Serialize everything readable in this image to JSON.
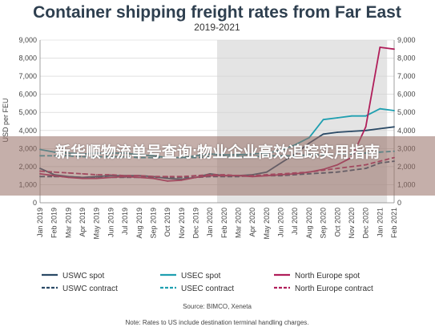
{
  "overlay_text": "新华顺物流单号查询:物业企业高效追踪实用指南",
  "chart_data": {
    "type": "line",
    "title": "Container shipping freight rates from Far East",
    "subtitle": "2019-2021",
    "ylabel": "USD per FEU",
    "ylim": [
      0,
      9000
    ],
    "yticks": [
      "0",
      "1,000",
      "2,000",
      "3,000",
      "4,000",
      "5,000",
      "6,000",
      "7,000",
      "8,000",
      "9,000"
    ],
    "x": [
      "Jan 2019",
      "Feb 2019",
      "Mar 2019",
      "Apr 2019",
      "May 2019",
      "Jun 2019",
      "Jul 2019",
      "Aug 2019",
      "Sep 2019",
      "Oct 2019",
      "Nov 2019",
      "Dec 2019",
      "Jan 2020",
      "Feb 2020",
      "Mar 2020",
      "Apr 2020",
      "May 2020",
      "Jun 2020",
      "Jul 2020",
      "Aug 2020",
      "Sep 2020",
      "Oct 2020",
      "Nov 2020",
      "Dec 2020",
      "Jan 2021",
      "Feb 2021"
    ],
    "shaded_range": [
      "Feb 2020",
      "Jan 2021"
    ],
    "series": [
      {
        "name": "USWC spot",
        "color": "#2b4a66",
        "dash": "none",
        "values": [
          1900,
          1550,
          1450,
          1400,
          1450,
          1500,
          1500,
          1500,
          1450,
          1350,
          1300,
          1400,
          1600,
          1500,
          1500,
          1550,
          1700,
          2200,
          2700,
          3300,
          3800,
          3900,
          3950,
          4000,
          4100,
          4200
        ]
      },
      {
        "name": "USWC contract",
        "color": "#2b4a66",
        "dash": "6,3",
        "values": [
          1450,
          1450,
          1450,
          1400,
          1400,
          1400,
          1400,
          1400,
          1400,
          1400,
          1400,
          1400,
          1450,
          1450,
          1450,
          1500,
          1500,
          1500,
          1550,
          1600,
          1650,
          1700,
          1800,
          1900,
          2200,
          2300
        ]
      },
      {
        "name": "USEC spot",
        "color": "#1f9fb0",
        "dash": "none",
        "values": [
          2950,
          2800,
          2750,
          2700,
          2750,
          2750,
          2750,
          2650,
          2600,
          2500,
          2500,
          2600,
          2700,
          2650,
          2650,
          2700,
          2750,
          2900,
          3200,
          3600,
          4600,
          4700,
          4800,
          4800,
          5200,
          5100
        ]
      },
      {
        "name": "USEC contract",
        "color": "#1f9fb0",
        "dash": "6,3",
        "values": [
          2600,
          2600,
          2600,
          2550,
          2550,
          2550,
          2550,
          2500,
          2500,
          2500,
          2500,
          2500,
          2550,
          2550,
          2550,
          2550,
          2600,
          2600,
          2600,
          2650,
          2650,
          2700,
          2700,
          2750,
          2800,
          2850
        ]
      },
      {
        "name": "North Europe spot",
        "color": "#b01e5a",
        "dash": "none",
        "values": [
          1600,
          1500,
          1400,
          1350,
          1350,
          1400,
          1450,
          1400,
          1350,
          1200,
          1250,
          1400,
          1500,
          1500,
          1500,
          1450,
          1500,
          1550,
          1600,
          1700,
          1850,
          2100,
          2500,
          4200,
          8600,
          8500
        ]
      },
      {
        "name": "North Europe contract",
        "color": "#b01e5a",
        "dash": "6,3",
        "values": [
          1750,
          1700,
          1650,
          1600,
          1550,
          1550,
          1500,
          1500,
          1450,
          1450,
          1450,
          1500,
          1550,
          1550,
          1500,
          1500,
          1550,
          1600,
          1650,
          1700,
          1800,
          1900,
          2000,
          2100,
          2300,
          2500
        ]
      }
    ],
    "source": "Source: BIMCO, Xeneta",
    "note": "Note: Rates to US include destination terminal handling charges."
  }
}
